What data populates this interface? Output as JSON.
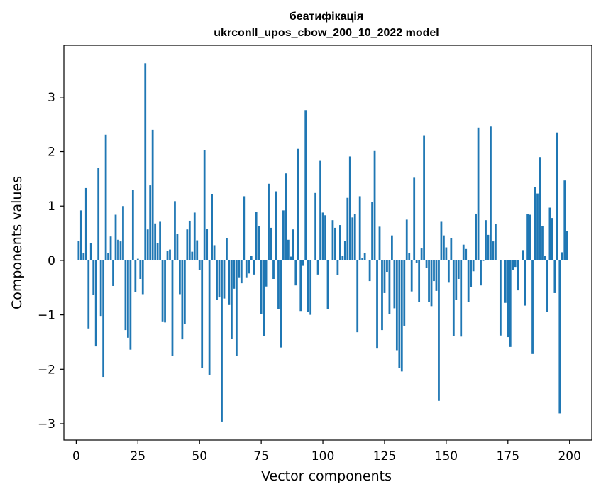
{
  "chart_data": {
    "type": "bar",
    "title": "беатифікація",
    "subtitle": "ukrconll_upos_cbow_200_10_2022 model",
    "xlabel": "Vector components",
    "ylabel": "Components values",
    "xlim": [
      -5,
      209
    ],
    "ylim": [
      -3.3,
      3.95
    ],
    "xticks": [
      0,
      25,
      50,
      75,
      100,
      125,
      150,
      175,
      200
    ],
    "yticks": [
      -3,
      -2,
      -1,
      0,
      1,
      2,
      3
    ],
    "xtick_labels": [
      "0",
      "25",
      "50",
      "75",
      "100",
      "125",
      "150",
      "175",
      "200"
    ],
    "ytick_labels": [
      "−3",
      "−2",
      "−1",
      "0",
      "1",
      "2",
      "3"
    ],
    "grid": false,
    "bar_color": "#1f77b4",
    "x": [
      0,
      1,
      2,
      3,
      4,
      5,
      6,
      7,
      8,
      9,
      10,
      11,
      12,
      13,
      14,
      15,
      16,
      17,
      18,
      19,
      20,
      21,
      22,
      23,
      24,
      25,
      26,
      27,
      28,
      29,
      30,
      31,
      32,
      33,
      34,
      35,
      36,
      37,
      38,
      39,
      40,
      41,
      42,
      43,
      44,
      45,
      46,
      47,
      48,
      49,
      50,
      51,
      52,
      53,
      54,
      55,
      56,
      57,
      58,
      59,
      60,
      61,
      62,
      63,
      64,
      65,
      66,
      67,
      68,
      69,
      70,
      71,
      72,
      73,
      74,
      75,
      76,
      77,
      78,
      79,
      80,
      81,
      82,
      83,
      84,
      85,
      86,
      87,
      88,
      89,
      90,
      91,
      92,
      93,
      94,
      95,
      96,
      97,
      98,
      99,
      100,
      101,
      102,
      103,
      104,
      105,
      106,
      107,
      108,
      109,
      110,
      111,
      112,
      113,
      114,
      115,
      116,
      117,
      118,
      119,
      120,
      121,
      122,
      123,
      124,
      125,
      126,
      127,
      128,
      129,
      130,
      131,
      132,
      133,
      134,
      135,
      136,
      137,
      138,
      139,
      140,
      141,
      142,
      143,
      144,
      145,
      146,
      147,
      148,
      149,
      150,
      151,
      152,
      153,
      154,
      155,
      156,
      157,
      158,
      159,
      160,
      161,
      162,
      163,
      164,
      165,
      166,
      167,
      168,
      169,
      170,
      171,
      172,
      173,
      174,
      175,
      176,
      177,
      178,
      179,
      180,
      181,
      182,
      183,
      184,
      185,
      186,
      187,
      188,
      189,
      190,
      191,
      192,
      193,
      194,
      195,
      196,
      197,
      198,
      199
    ],
    "values": [
      0.0,
      0.36,
      0.92,
      0.14,
      1.33,
      -1.25,
      0.32,
      -0.63,
      -1.58,
      1.7,
      -1.02,
      -2.14,
      2.31,
      0.14,
      0.44,
      -0.47,
      0.84,
      0.38,
      0.35,
      1.0,
      -1.28,
      -1.42,
      -1.64,
      1.29,
      -0.58,
      0.03,
      -0.34,
      -0.62,
      3.62,
      0.57,
      1.38,
      2.4,
      0.68,
      0.32,
      0.71,
      -1.12,
      -1.14,
      0.18,
      0.2,
      -1.76,
      1.09,
      0.49,
      -0.62,
      -1.45,
      -1.17,
      0.57,
      0.73,
      0.16,
      0.88,
      0.37,
      -0.18,
      -1.98,
      2.03,
      0.58,
      -2.1,
      1.22,
      0.28,
      -0.73,
      -0.68,
      -2.96,
      -0.7,
      0.41,
      -0.82,
      -1.44,
      -0.52,
      -1.75,
      -0.31,
      -0.42,
      1.18,
      -0.31,
      -0.24,
      0.08,
      -0.26,
      0.89,
      0.63,
      -0.99,
      -1.39,
      -0.48,
      1.41,
      0.6,
      -0.34,
      1.27,
      -0.9,
      -1.6,
      0.92,
      1.6,
      0.38,
      0.07,
      0.57,
      -0.46,
      2.05,
      -0.93,
      -0.1,
      2.76,
      -0.94,
      -1.0,
      0.0,
      1.24,
      -0.26,
      1.83,
      0.88,
      0.83,
      -0.9,
      0.0,
      0.74,
      0.6,
      -0.27,
      0.65,
      0.08,
      0.36,
      1.15,
      1.91,
      0.79,
      0.85,
      -1.32,
      1.18,
      0.05,
      0.14,
      0.0,
      -0.38,
      1.07,
      2.01,
      -1.62,
      0.62,
      -1.28,
      -0.6,
      -0.21,
      -0.99,
      0.46,
      -0.88,
      -1.65,
      -1.98,
      -2.04,
      -1.2,
      0.75,
      0.14,
      -0.57,
      1.52,
      -0.04,
      -0.76,
      0.22,
      2.3,
      -0.14,
      -0.77,
      -0.84,
      -0.38,
      -0.56,
      -2.58,
      0.71,
      0.46,
      0.24,
      -0.41,
      0.41,
      -1.39,
      -0.72,
      -0.34,
      -1.4,
      0.29,
      0.21,
      -0.76,
      -0.49,
      -0.2,
      0.86,
      2.44,
      -0.46,
      -0.01,
      0.74,
      0.47,
      2.46,
      0.35,
      0.67,
      0.0,
      -1.38,
      0.0,
      -0.78,
      -1.41,
      -1.59,
      -0.17,
      -0.12,
      -0.55,
      0.0,
      0.19,
      -0.83,
      0.85,
      0.84,
      -1.72,
      1.35,
      1.23,
      1.9,
      0.63,
      0.08,
      -0.94,
      0.97,
      0.78,
      -0.6,
      2.35,
      -2.81,
      0.15,
      1.47,
      0.54
    ]
  }
}
